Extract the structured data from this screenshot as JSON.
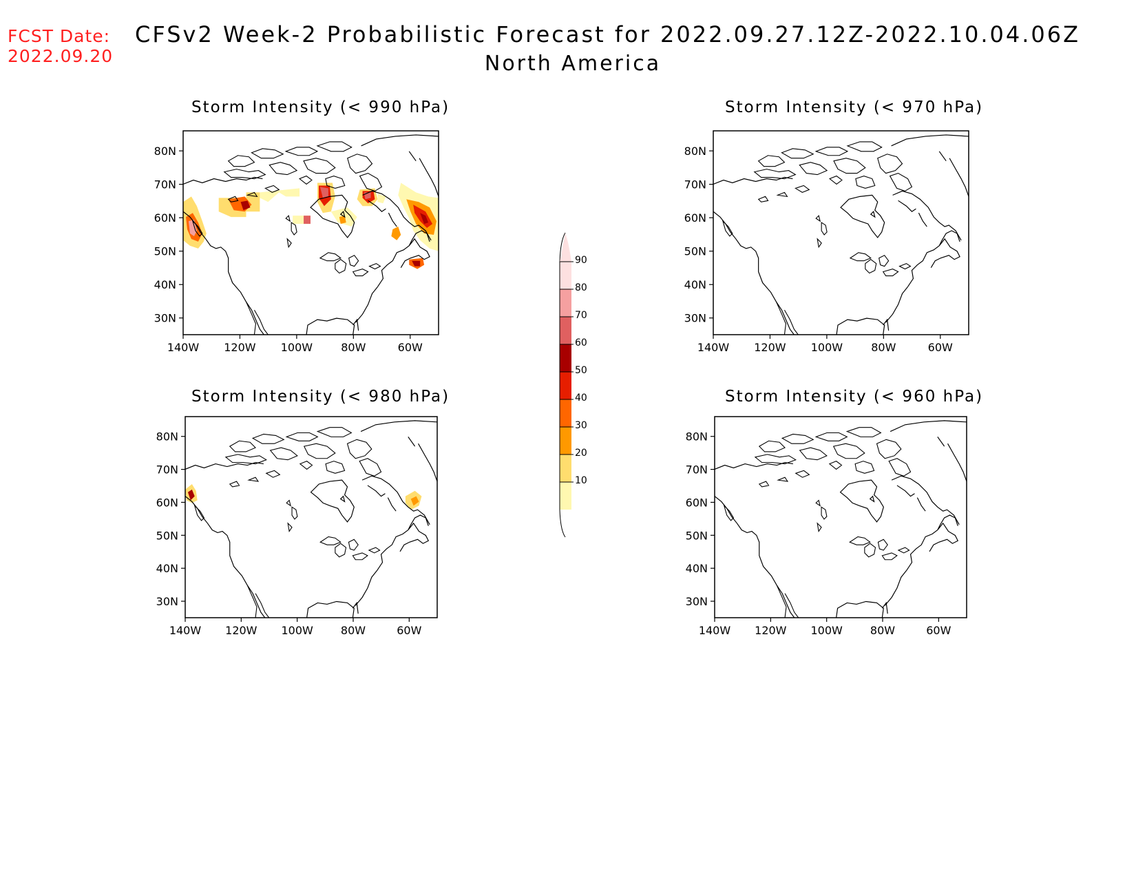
{
  "header": {
    "fcst_label": "FCST Date:",
    "fcst_date": "2022.09.20",
    "fcst_color": "#ff2020",
    "title": "CFSv2 Week-2 Probabilistic Forecast for 2022.09.27.12Z-2022.10.04.06Z",
    "subtitle": "North America"
  },
  "map_axes": {
    "lat_ticks": [
      "80N",
      "70N",
      "60N",
      "50N",
      "40N",
      "30N"
    ],
    "lon_ticks": [
      "140W",
      "120W",
      "100W",
      "80W",
      "60W"
    ]
  },
  "panels": [
    {
      "id": "p990",
      "title": "Storm Intensity (< 990 hPa)",
      "threshold_hpa": 990
    },
    {
      "id": "p970",
      "title": "Storm Intensity (< 970 hPa)",
      "threshold_hpa": 970
    },
    {
      "id": "p980",
      "title": "Storm Intensity (< 980 hPa)",
      "threshold_hpa": 980
    },
    {
      "id": "p960",
      "title": "Storm Intensity (< 960 hPa)",
      "threshold_hpa": 960
    }
  ],
  "colorbar": {
    "labels": [
      "90",
      "80",
      "70",
      "60",
      "50",
      "40",
      "30",
      "20",
      "10"
    ],
    "colors": [
      "#fde0e0",
      "#f5a0a0",
      "#e06060",
      "#a80000",
      "#e61e00",
      "#ff6600",
      "#ff9900",
      "#ffdd6e",
      "#fff8b0"
    ]
  }
}
